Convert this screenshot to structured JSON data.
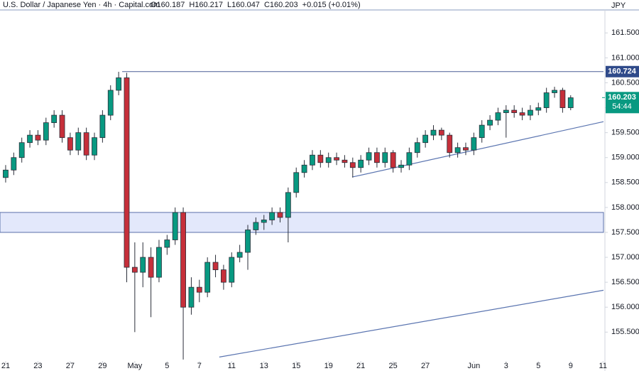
{
  "chart_data": {
    "type": "candlestick",
    "title": "U.S. Dollar / Japanese Yen · 4h · Capital.com",
    "header": [
      "O160.187",
      "H160.217",
      "L160.047",
      "C160.203",
      "+0.015 (+0.01%)"
    ],
    "currency": "JPY",
    "countdown": "54:44",
    "last_price": 160.203,
    "up_color": "#089981",
    "down_color": "#c62f3a",
    "x": [
      0,
      3,
      6,
      9,
      12,
      15,
      18,
      21,
      24,
      27,
      30,
      33,
      36,
      39,
      42,
      45,
      48,
      51,
      54,
      57,
      60,
      63,
      66,
      69,
      72,
      75,
      78,
      81,
      84,
      87,
      90,
      93,
      96,
      99,
      102,
      105,
      108,
      111,
      114,
      117,
      120,
      123,
      126,
      129,
      132,
      135,
      138,
      141,
      144,
      147,
      150,
      153,
      156,
      159,
      162,
      165,
      168,
      171,
      174,
      177,
      180,
      183,
      186,
      189,
      192,
      195,
      198,
      201,
      204,
      207,
      210
    ],
    "open": [
      158.6,
      158.75,
      159.0,
      159.3,
      159.45,
      159.35,
      159.7,
      159.85,
      159.4,
      159.15,
      159.5,
      159.05,
      159.4,
      159.85,
      160.35,
      160.6,
      156.8,
      156.7,
      157.0,
      156.6,
      157.2,
      157.35,
      157.9,
      156.0,
      156.4,
      156.3,
      156.9,
      156.75,
      156.5,
      157.0,
      157.1,
      157.55,
      157.7,
      157.75,
      157.9,
      157.8,
      158.3,
      158.7,
      158.85,
      159.05,
      158.9,
      159.0,
      158.95,
      158.9,
      158.8,
      158.95,
      159.1,
      158.9,
      159.1,
      158.8,
      158.85,
      159.1,
      159.3,
      159.45,
      159.55,
      159.45,
      159.1,
      159.2,
      159.15,
      159.4,
      159.65,
      159.75,
      159.9,
      159.95,
      159.9,
      159.85,
      159.95,
      160.0,
      160.3,
      160.35,
      160.0
    ],
    "high": [
      158.85,
      159.1,
      159.4,
      159.55,
      159.55,
      159.8,
      159.95,
      159.95,
      159.5,
      159.6,
      159.6,
      159.5,
      159.95,
      160.45,
      160.72,
      160.7,
      157.3,
      157.3,
      157.2,
      157.35,
      157.45,
      158.0,
      158.0,
      156.6,
      156.55,
      157.0,
      157.05,
      156.85,
      157.1,
      157.25,
      157.65,
      157.8,
      157.85,
      158.0,
      158.0,
      158.4,
      158.8,
      158.95,
      159.15,
      159.15,
      159.1,
      159.1,
      159.05,
      159.0,
      159.05,
      159.2,
      159.2,
      159.2,
      159.15,
      158.95,
      159.2,
      159.4,
      159.55,
      159.65,
      159.6,
      159.5,
      159.3,
      159.3,
      159.5,
      159.75,
      159.85,
      160.0,
      160.05,
      160.05,
      160.0,
      160.05,
      160.1,
      160.4,
      160.42,
      160.4,
      160.25
    ],
    "low": [
      158.5,
      158.65,
      158.9,
      159.2,
      159.25,
      159.25,
      159.6,
      159.3,
      159.05,
      159.05,
      158.95,
      158.95,
      159.3,
      159.75,
      160.25,
      156.5,
      155.5,
      156.4,
      155.8,
      156.5,
      157.05,
      157.25,
      154.95,
      155.85,
      156.1,
      156.2,
      156.6,
      156.35,
      156.4,
      156.9,
      156.75,
      157.45,
      157.55,
      157.65,
      157.7,
      157.3,
      158.2,
      158.6,
      158.75,
      158.8,
      158.8,
      158.85,
      158.8,
      158.6,
      158.7,
      158.85,
      158.8,
      158.8,
      158.7,
      158.7,
      158.75,
      159.0,
      159.2,
      159.35,
      159.35,
      159.0,
      159.0,
      159.05,
      159.05,
      159.3,
      159.55,
      159.65,
      159.4,
      159.8,
      159.75,
      159.75,
      159.85,
      159.9,
      160.2,
      159.9,
      159.95
    ],
    "close": [
      158.75,
      159.0,
      159.3,
      159.45,
      159.35,
      159.7,
      159.85,
      159.4,
      159.15,
      159.5,
      159.05,
      159.4,
      159.85,
      160.35,
      160.6,
      156.8,
      156.7,
      157.0,
      156.6,
      157.2,
      157.35,
      157.9,
      156.0,
      156.4,
      156.3,
      156.9,
      156.75,
      156.5,
      157.0,
      157.1,
      157.55,
      157.7,
      157.75,
      157.9,
      157.8,
      158.3,
      158.7,
      158.85,
      159.05,
      158.9,
      159.0,
      158.95,
      158.9,
      158.8,
      158.95,
      159.1,
      158.9,
      159.1,
      158.8,
      158.85,
      159.1,
      159.3,
      159.45,
      159.55,
      159.45,
      159.1,
      159.2,
      159.15,
      159.4,
      159.65,
      159.75,
      159.9,
      159.95,
      159.9,
      159.85,
      159.95,
      160.0,
      160.3,
      160.35,
      160.0,
      160.2
    ],
    "xlim": [
      -2.1,
      222.2
    ],
    "ylim": [
      154.92,
      162.16
    ],
    "xticks": [
      {
        "value": 0,
        "label": "21"
      },
      {
        "value": 12,
        "label": "23"
      },
      {
        "value": 24,
        "label": "27"
      },
      {
        "value": 36,
        "label": "29"
      },
      {
        "value": 48,
        "label": "May"
      },
      {
        "value": 60,
        "label": "5"
      },
      {
        "value": 72,
        "label": "7"
      },
      {
        "value": 84,
        "label": "11"
      },
      {
        "value": 96,
        "label": "13"
      },
      {
        "value": 108,
        "label": "15"
      },
      {
        "value": 120,
        "label": "19"
      },
      {
        "value": 132,
        "label": "21"
      },
      {
        "value": 144,
        "label": "25"
      },
      {
        "value": 156,
        "label": "27"
      },
      {
        "value": 174,
        "label": "Jun"
      },
      {
        "value": 186,
        "label": "3"
      },
      {
        "value": 198,
        "label": "5"
      },
      {
        "value": 210,
        "label": "9"
      },
      {
        "value": 222,
        "label": "11"
      }
    ],
    "yticks": [
      {
        "value": 155.5,
        "label": "155.500"
      },
      {
        "value": 156,
        "label": "156.000"
      },
      {
        "value": 156.5,
        "label": "156.500"
      },
      {
        "value": 157,
        "label": "157.000"
      },
      {
        "value": 157.5,
        "label": "157.500"
      },
      {
        "value": 158,
        "label": "158.000"
      },
      {
        "value": 158.5,
        "label": "158.500"
      },
      {
        "value": 159,
        "label": "159.000"
      },
      {
        "value": 159.5,
        "label": "159.500"
      },
      {
        "value": 160,
        "label": "160.000"
      },
      {
        "value": 160.5,
        "label": "160.500"
      },
      {
        "value": 161,
        "label": "161.000"
      },
      {
        "value": 161.5,
        "label": "161.500"
      }
    ],
    "hline": {
      "value": 160.724,
      "x_start": 43.3
    },
    "zone": [
      157.5,
      157.9
    ],
    "trendlines": [
      {
        "x": [
          128.8,
          222.2
        ],
        "y": [
          158.61,
          159.72
        ]
      },
      {
        "x": [
          79.4,
          222.2
        ],
        "y": [
          155.0,
          156.34
        ]
      }
    ]
  }
}
